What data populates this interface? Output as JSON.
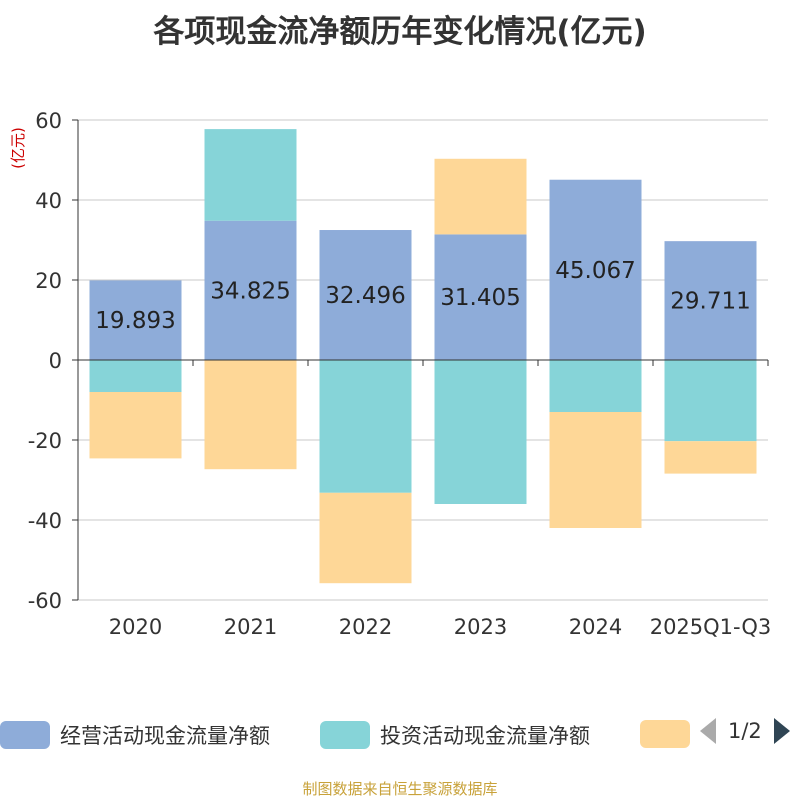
{
  "title": "各项现金流净额历年变化情况(亿元)",
  "chart_data": {
    "type": "bar",
    "stacked": true,
    "title": "各项现金流净额历年变化情况(亿元)",
    "ylabel": "(亿元)",
    "xlabel": "",
    "ylim": [
      -60,
      60
    ],
    "yticks": [
      60,
      40,
      20,
      0,
      -20,
      -40,
      -60
    ],
    "grid": true,
    "legend_position": "bottom",
    "categories": [
      "2020",
      "2021",
      "2022",
      "2023",
      "2024",
      "2025Q1-Q3"
    ],
    "series": [
      {
        "name": "经营活动现金流量净额",
        "color": "#8eacd9",
        "values": [
          19.893,
          34.825,
          32.496,
          31.405,
          45.067,
          29.711
        ],
        "labels": [
          "19.893",
          "34.825",
          "32.496",
          "31.405",
          "45.067",
          "29.711"
        ]
      },
      {
        "name": "投资活动现金流量净额",
        "color": "#86d4d8",
        "values": [
          -8.0,
          22.9,
          -33.2,
          -36.0,
          -13.0,
          -20.3
        ]
      },
      {
        "name": "",
        "color": "#fed797",
        "values": [
          -16.6,
          -27.3,
          -22.6,
          18.9,
          -29.0,
          -8.1
        ]
      }
    ]
  },
  "legend": {
    "page": "1/2",
    "prev_icon": "triangle-left-icon",
    "next_icon": "triangle-right-icon"
  },
  "source_note": "制图数据来自恒生聚源数据库"
}
